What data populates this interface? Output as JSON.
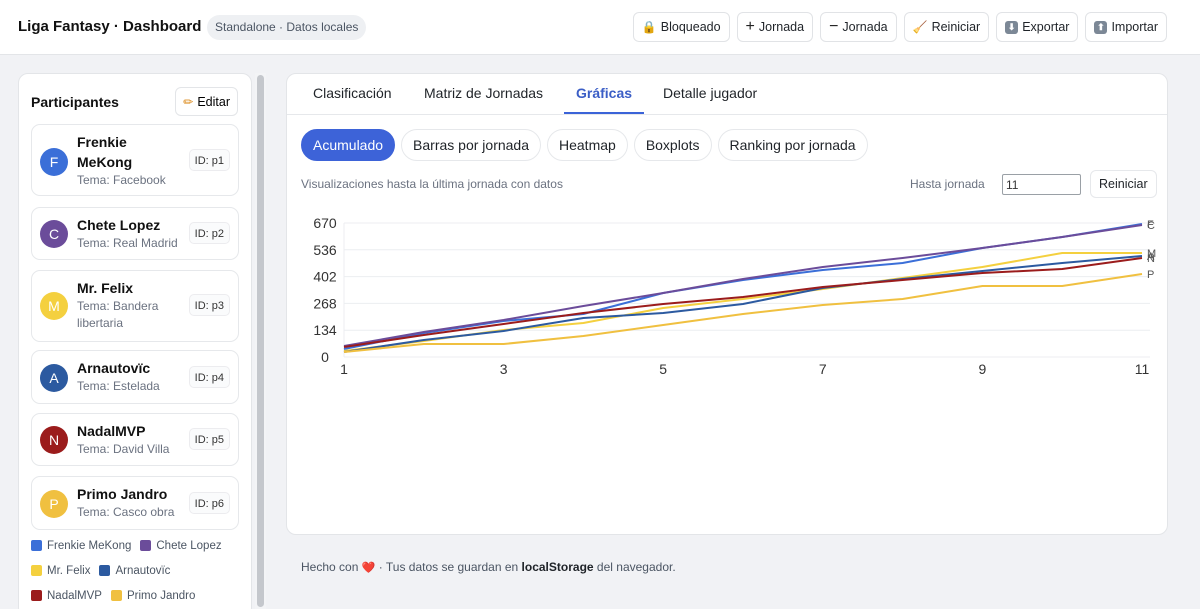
{
  "header": {
    "title": "Liga Fantasy · Dashboard",
    "mode_badge": "Standalone · Datos locales",
    "actions": [
      {
        "label": "Bloqueado",
        "icon": "lock-icon",
        "glyph": "🔒"
      },
      {
        "label": "Jornada",
        "icon": "plus-icon",
        "glyph": "+"
      },
      {
        "label": "Jornada",
        "icon": "minus-icon",
        "glyph": "−"
      },
      {
        "label": "Reiniciar",
        "icon": "broom-icon",
        "glyph": "🧹"
      },
      {
        "label": "Exportar",
        "icon": "download-icon",
        "glyph": "⬇"
      },
      {
        "label": "Importar",
        "icon": "upload-icon",
        "glyph": "⬆"
      }
    ]
  },
  "sidebar": {
    "title": "Participantes",
    "edit_label": "Editar",
    "participants": [
      {
        "initial": "F",
        "name": "Frenkie MeKong",
        "theme": "Tema: Facebook",
        "id": "ID: p1",
        "color": "#3b6fd8"
      },
      {
        "initial": "C",
        "name": "Chete Lopez",
        "theme": "Tema: Real Madrid",
        "id": "ID: p2",
        "color": "#6b4c9a"
      },
      {
        "initial": "M",
        "name": "Mr. Felix",
        "theme": "Tema: Bandera libertaria",
        "id": "ID: p3",
        "color": "#f4d03f"
      },
      {
        "initial": "A",
        "name": "Arnautovïc",
        "theme": "Tema: Estelada",
        "id": "ID: p4",
        "color": "#2c5aa0"
      },
      {
        "initial": "N",
        "name": "NadalMVP",
        "theme": "Tema: David Villa",
        "id": "ID: p5",
        "color": "#9b1c1c"
      },
      {
        "initial": "P",
        "name": "Primo Jandro",
        "theme": "Tema: Casco obra",
        "id": "ID: p6",
        "color": "#f0c040"
      }
    ],
    "legend": [
      {
        "name": "Frenkie MeKong",
        "color": "#3b6fd8"
      },
      {
        "name": "Chete Lopez",
        "color": "#6b4c9a"
      },
      {
        "name": "Mr. Felix",
        "color": "#f4d03f"
      },
      {
        "name": "Arnautovïc",
        "color": "#2c5aa0"
      },
      {
        "name": "NadalMVP",
        "color": "#9b1c1c"
      },
      {
        "name": "Primo Jandro",
        "color": "#f0c040"
      }
    ]
  },
  "main": {
    "tabs": [
      {
        "label": "Clasificación",
        "active": false
      },
      {
        "label": "Matriz de Jornadas",
        "active": false
      },
      {
        "label": "Gráficas",
        "active": true
      },
      {
        "label": "Detalle jugador",
        "active": false
      }
    ],
    "subtabs": [
      {
        "label": "Acumulado",
        "active": true
      },
      {
        "label": "Barras por jornada",
        "active": false
      },
      {
        "label": "Heatmap",
        "active": false
      },
      {
        "label": "Boxplots",
        "active": false
      },
      {
        "label": "Ranking por jornada",
        "active": false
      }
    ],
    "info": "Visualizaciones hasta la última jornada con datos",
    "upto_label": "Hasta jornada",
    "upto_value": "11",
    "reset_label": "Reiniciar"
  },
  "chart_data": {
    "type": "line",
    "title": "",
    "xlabel": "",
    "ylabel": "",
    "x": [
      1,
      2,
      3,
      4,
      5,
      6,
      7,
      8,
      9,
      10,
      11
    ],
    "x_ticks": [
      1,
      3,
      5,
      7,
      9,
      11
    ],
    "y_ticks": [
      0,
      134,
      268,
      402,
      536,
      670
    ],
    "ylim": [
      0,
      670
    ],
    "xlim": [
      1,
      11
    ],
    "grid": true,
    "end_labels": [
      "F",
      "C",
      "M",
      "A",
      "N",
      "P"
    ],
    "series": [
      {
        "name": "Frenkie MeKong",
        "color": "#3b6fd8",
        "values": [
          40,
          120,
          180,
          215,
          320,
          385,
          435,
          470,
          545,
          600,
          665
        ]
      },
      {
        "name": "Chete Lopez",
        "color": "#6b4c9a",
        "values": [
          55,
          125,
          185,
          255,
          320,
          390,
          450,
          495,
          545,
          600,
          660
        ]
      },
      {
        "name": "Mr. Felix",
        "color": "#f4d03f",
        "values": [
          30,
          80,
          135,
          170,
          245,
          290,
          340,
          395,
          450,
          520,
          520
        ]
      },
      {
        "name": "Arnautovïc",
        "color": "#2c5aa0",
        "values": [
          25,
          85,
          130,
          195,
          220,
          265,
          345,
          390,
          430,
          470,
          505
        ]
      },
      {
        "name": "NadalMVP",
        "color": "#9b1c1c",
        "values": [
          50,
          110,
          165,
          220,
          265,
          300,
          350,
          385,
          420,
          440,
          495
        ]
      },
      {
        "name": "Primo Jandro",
        "color": "#f0c040",
        "values": [
          25,
          65,
          65,
          105,
          160,
          215,
          260,
          290,
          355,
          355,
          415
        ]
      }
    ]
  },
  "footer": {
    "prefix": "Hecho con",
    "middle": "· Tus datos se guardan en",
    "bold": "localStorage",
    "suffix": "del navegador."
  }
}
